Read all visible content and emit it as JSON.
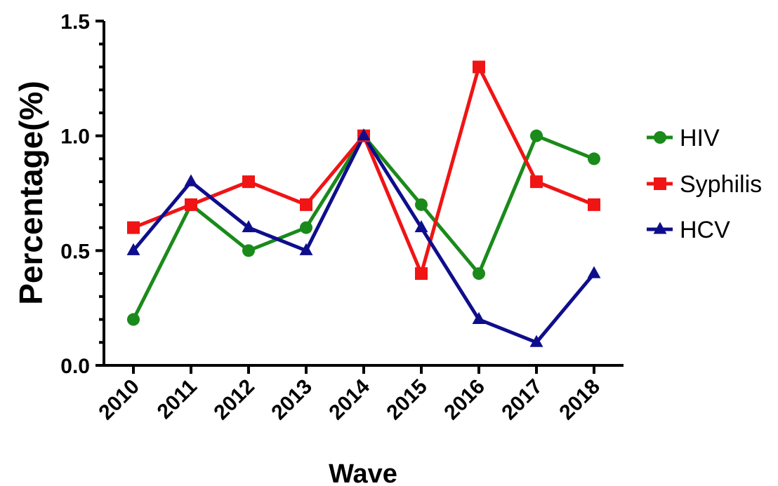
{
  "chart_data": {
    "type": "line",
    "title": "",
    "xlabel": "Wave",
    "ylabel": "Percentage(%)",
    "categories": [
      "2010",
      "2011",
      "2012",
      "2013",
      "2014",
      "2015",
      "2016",
      "2017",
      "2018"
    ],
    "ylim": [
      0,
      1.5
    ],
    "yticks": [
      "0.0",
      "0.5",
      "1.0",
      "1.5"
    ],
    "grid": false,
    "legend_position": "right",
    "series": [
      {
        "name": "HIV",
        "color": "#1a8a1a",
        "marker": "circle",
        "values": [
          0.2,
          0.7,
          0.5,
          0.6,
          1.0,
          0.7,
          0.4,
          1.0,
          0.9
        ]
      },
      {
        "name": "Syphilis",
        "color": "#f01414",
        "marker": "square",
        "values": [
          0.6,
          0.7,
          0.8,
          0.7,
          1.0,
          0.4,
          1.3,
          0.8,
          0.7
        ]
      },
      {
        "name": "HCV",
        "color": "#0e0e8c",
        "marker": "triangle",
        "values": [
          0.5,
          0.8,
          0.6,
          0.5,
          1.0,
          0.6,
          0.2,
          0.1,
          0.4
        ]
      }
    ]
  }
}
